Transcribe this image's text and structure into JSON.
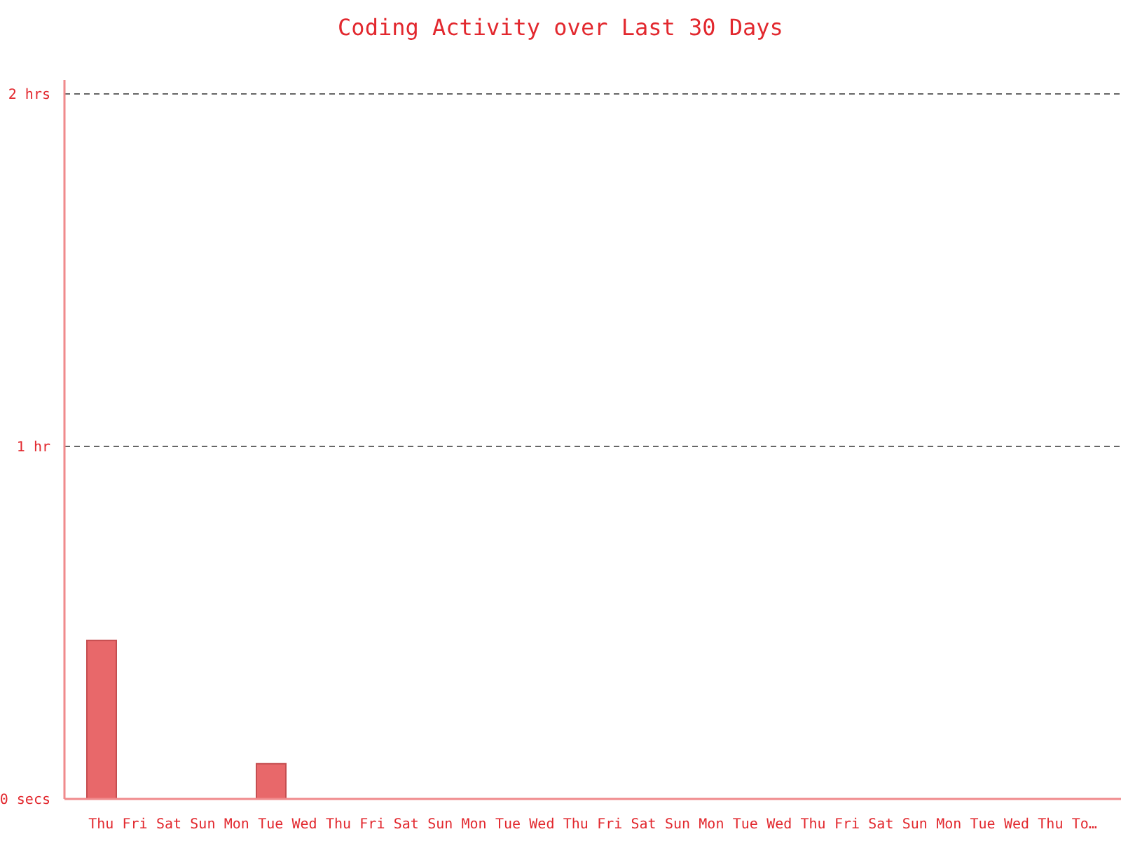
{
  "chart_data": {
    "type": "bar",
    "title": "Coding Activity over Last 30 Days",
    "categories": [
      "Thu",
      "Fri",
      "Sat",
      "Sun",
      "Mon",
      "Tue",
      "Wed",
      "Thu",
      "Fri",
      "Sat",
      "Sun",
      "Mon",
      "Tue",
      "Wed",
      "Thu",
      "Fri",
      "Sat",
      "Sun",
      "Mon",
      "Tue",
      "Wed",
      "Thu",
      "Fri",
      "Sat",
      "Sun",
      "Mon",
      "Tue",
      "Wed",
      "Thu",
      "To…"
    ],
    "values": [
      0.45,
      0,
      0,
      0,
      0,
      0.1,
      0,
      0,
      0,
      0,
      0,
      0,
      0,
      0,
      0,
      0,
      0,
      0,
      0,
      0,
      0,
      0,
      0,
      0,
      0,
      0,
      0,
      0,
      0,
      0
    ],
    "color": "#e8686a",
    "ylim": [
      0,
      2.04
    ],
    "yticks": [
      {
        "value": 0,
        "label": "0 secs"
      },
      {
        "value": 1,
        "label": "1 hr"
      },
      {
        "value": 2,
        "label": "2 hrs"
      }
    ],
    "grid": "y"
  }
}
